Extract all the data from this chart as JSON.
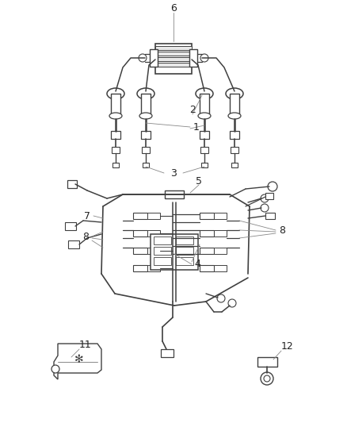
{
  "background": "#ffffff",
  "line_color": "#404040",
  "label_color": "#222222",
  "fig_width": 4.38,
  "fig_height": 5.33,
  "dpi": 100
}
